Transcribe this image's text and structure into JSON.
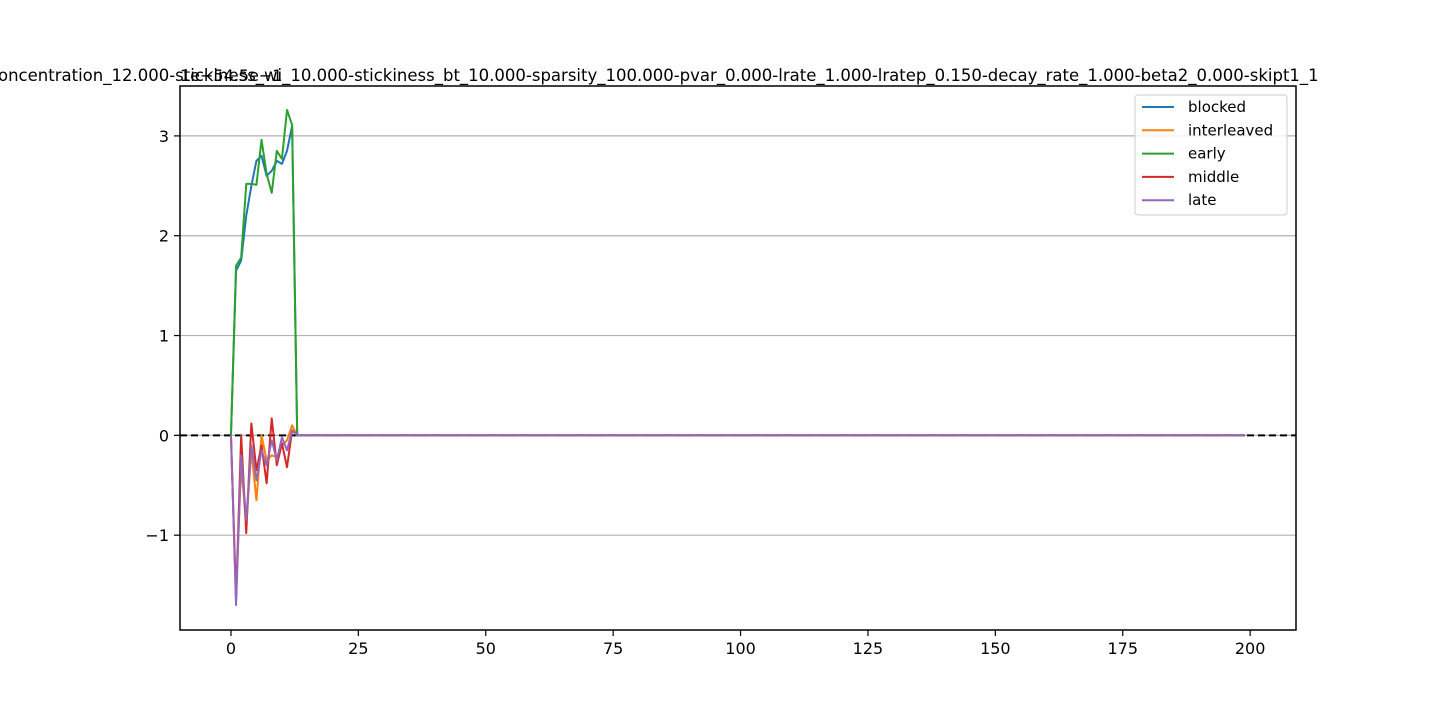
{
  "chart_data": {
    "type": "line",
    "title": "oncentration_12.000-stickiness_wi_10.000-stickiness_bt_10.000-sparsity_100.000-pvar_0.000-lrate_1.000-lratep_0.150-decay_rate_1.000-beta2_0.000-skipt1_1",
    "offset_label": "1e−54.5e−1",
    "xlabel": "",
    "ylabel": "",
    "xlim": [
      -10,
      209
    ],
    "ylim": [
      -1.95,
      3.5
    ],
    "x_ticks": [
      0,
      25,
      50,
      75,
      100,
      125,
      150,
      175,
      200
    ],
    "y_ticks": [
      -1,
      0,
      1,
      2,
      3
    ],
    "x_tick_labels": [
      "0",
      "25",
      "50",
      "75",
      "100",
      "125",
      "150",
      "175",
      "200"
    ],
    "y_tick_labels": [
      "−1",
      "0",
      "1",
      "2",
      "3"
    ],
    "grid": "horizontal",
    "legend_position": "top-right",
    "reference_line": {
      "y": 0,
      "style": "dashed",
      "color": "#000000"
    },
    "x_end": 199,
    "series": [
      {
        "name": "blocked",
        "color": "#1f77b4",
        "values": [
          0,
          1.65,
          1.75,
          2.2,
          2.5,
          2.75,
          2.8,
          2.6,
          2.65,
          2.75,
          2.72,
          2.85,
          3.1,
          0.0
        ]
      },
      {
        "name": "interleaved",
        "color": "#ff7f0e",
        "values": [
          0,
          -1.6,
          -0.3,
          -0.9,
          -0.15,
          -0.65,
          0.0,
          -0.25,
          -0.2,
          -0.22,
          -0.1,
          -0.05,
          0.1,
          0.0
        ]
      },
      {
        "name": "early",
        "color": "#2ca02c",
        "values": [
          0,
          1.7,
          1.78,
          2.52,
          2.52,
          2.51,
          2.96,
          2.62,
          2.43,
          2.85,
          2.77,
          3.26,
          3.11,
          0.0
        ]
      },
      {
        "name": "middle",
        "color": "#d62728",
        "values": [
          0,
          -1.65,
          0.0,
          -0.98,
          0.12,
          -0.35,
          -0.1,
          -0.48,
          0.17,
          -0.3,
          -0.08,
          -0.32,
          0.05,
          0.0
        ]
      },
      {
        "name": "late",
        "color": "#9467bd",
        "values": [
          0,
          -1.7,
          -0.2,
          -0.85,
          -0.1,
          -0.45,
          -0.15,
          -0.3,
          -0.05,
          -0.25,
          -0.02,
          -0.15,
          0.05,
          0.0
        ]
      }
    ]
  }
}
